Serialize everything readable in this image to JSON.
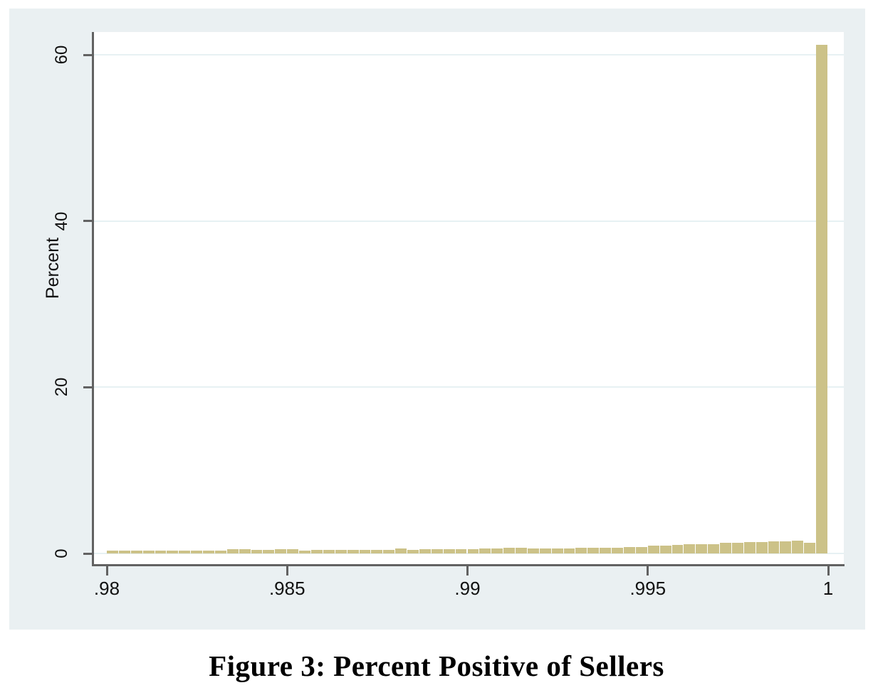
{
  "figure": {
    "caption": "Figure 3: Percent Positive of Sellers"
  },
  "chart_data": {
    "type": "bar",
    "title": "",
    "xlabel": "",
    "ylabel": "Percent",
    "xlim": [
      0.98,
      1.0
    ],
    "ylim": [
      0,
      62
    ],
    "grid": true,
    "legend": false,
    "bin_start": 0.98,
    "bin_width": 0.000333,
    "yticks": [
      0,
      20,
      40,
      60
    ],
    "ytick_labels": [
      "0",
      "20",
      "40",
      "60"
    ],
    "xticks": [
      0.98,
      0.985,
      0.99,
      0.995,
      1.0
    ],
    "xtick_labels": [
      ".98",
      ".985",
      ".99",
      ".995",
      "1"
    ],
    "values": [
      0.35,
      0.32,
      0.34,
      0.35,
      0.33,
      0.35,
      0.33,
      0.35,
      0.34,
      0.38,
      0.52,
      0.55,
      0.4,
      0.46,
      0.52,
      0.5,
      0.36,
      0.42,
      0.44,
      0.42,
      0.43,
      0.44,
      0.45,
      0.46,
      0.62,
      0.45,
      0.5,
      0.52,
      0.54,
      0.52,
      0.5,
      0.56,
      0.6,
      0.72,
      0.7,
      0.56,
      0.62,
      0.64,
      0.62,
      0.66,
      0.65,
      0.68,
      0.72,
      0.75,
      0.8,
      0.92,
      0.96,
      1.0,
      1.1,
      1.12,
      1.15,
      1.25,
      1.3,
      1.35,
      1.4,
      1.42,
      1.45,
      1.5,
      1.32,
      61.2
    ],
    "colors": {
      "bar_fill": "#ccc288",
      "background": "#eaf0f2",
      "plot_background": "#ffffff",
      "gridline": "#e7f1f3",
      "axis": "#626262",
      "text": "#111111"
    }
  }
}
